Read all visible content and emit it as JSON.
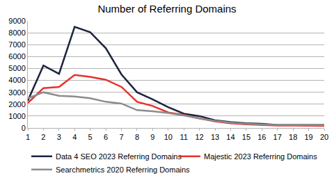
{
  "chart_data": {
    "type": "line",
    "title": "Number of Referring Domains",
    "x": [
      1,
      2,
      3,
      4,
      5,
      6,
      7,
      8,
      9,
      10,
      11,
      12,
      13,
      14,
      15,
      16,
      17,
      18,
      19,
      20
    ],
    "series": [
      {
        "name": "Data 4 SEO 2023 Referring Domains",
        "color": "#1b2440",
        "values": [
          2300,
          5250,
          4550,
          8500,
          8050,
          6700,
          4500,
          3000,
          2400,
          1750,
          1200,
          1000,
          650,
          500,
          400,
          350,
          250,
          250,
          280,
          250
        ]
      },
      {
        "name": "Majestic 2023 Referring Domains",
        "color": "#e8312e",
        "values": [
          2100,
          3350,
          3450,
          4450,
          4300,
          4050,
          3450,
          2200,
          1850,
          1300,
          1100,
          800,
          550,
          400,
          300,
          250,
          200,
          200,
          200,
          180
        ]
      },
      {
        "name": "Searchmetrics 2020 Referring Domains",
        "color": "#8c8c8c",
        "values": [
          2500,
          3000,
          2700,
          2650,
          2500,
          2200,
          2050,
          1500,
          1400,
          1250,
          1050,
          800,
          600,
          450,
          350,
          300,
          250,
          250,
          250,
          230
        ]
      }
    ],
    "xlim": [
      1,
      20
    ],
    "xticks": [
      1,
      2,
      3,
      4,
      5,
      6,
      7,
      8,
      9,
      10,
      11,
      12,
      13,
      14,
      15,
      16,
      17,
      18,
      19,
      20
    ],
    "ylim": [
      0,
      9000
    ],
    "yticks": [
      0,
      1000,
      2000,
      3000,
      4000,
      5000,
      6000,
      7000,
      8000,
      9000
    ],
    "grid": true,
    "legend": "bottom"
  }
}
